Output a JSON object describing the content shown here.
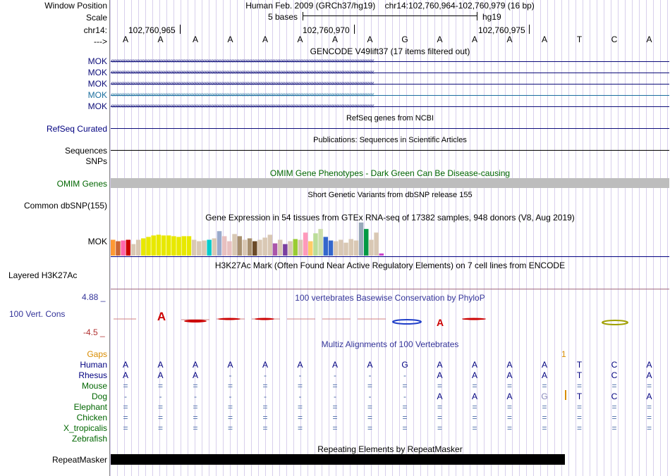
{
  "header": {
    "window_position_label": "Window Position",
    "window_position_title": "Human Feb. 2009 (GRCh37/hg19)    chr14:102,760,964-102,760,979 (16 bp)",
    "scale_label": "Scale",
    "scale_text": "5 bases",
    "scale_assembly": "hg19",
    "chrom_label": "chr14:",
    "coords": [
      "102,760,965",
      "102,760,970",
      "102,760,975"
    ],
    "strand_label": "--->"
  },
  "sequence": [
    "A",
    "A",
    "A",
    "A",
    "A",
    "A",
    "A",
    "A",
    "G",
    "A",
    "A",
    "A",
    "A",
    "T",
    "C",
    "A"
  ],
  "tracks": {
    "gencode": {
      "title": "GENCODE V49lift37 (17 items filtered out)",
      "items": [
        "MOK",
        "MOK",
        "MOK",
        "MOK",
        "MOK"
      ],
      "colors": [
        "#0c0c78",
        "#0c0c78",
        "#0c0c78",
        "#1a6e9e",
        "#0c0c78"
      ]
    },
    "refseq": {
      "title": "RefSeq genes from NCBI",
      "label": "RefSeq Curated"
    },
    "publications": {
      "title": "Publications: Sequences in Scientific Articles",
      "label1": "Sequences",
      "label2": "SNPs"
    },
    "omim": {
      "title": "OMIM Gene Phenotypes - Dark Green Can Be Disease-causing",
      "label": "OMIM Genes"
    },
    "dbsnp": {
      "title": "Short Genetic Variants from dbSNP release 155",
      "label": "Common dbSNP(155)"
    },
    "gtex": {
      "title": "Gene Expression in 54 tissues from GTEx RNA-seq of 17382 samples, 948 donors (V8, Aug 2019)",
      "label": "MOK"
    },
    "h3k27ac": {
      "title": "H3K27Ac Mark (Often Found Near Active Regulatory Elements) on 7 cell lines from ENCODE",
      "label": "Layered H3K27Ac"
    },
    "phylop": {
      "title": "100 vertebrates Basewise Conservation by PhyloP",
      "label": "100 Vert. Cons",
      "max": "4.88 _",
      "min": "-4.5 _"
    },
    "multiz": {
      "title": "Multiz Alignments of 100 Vertebrates",
      "gaps_label": "Gaps",
      "gap_count": "1",
      "species": [
        {
          "name": "Human",
          "row": [
            "A",
            "A",
            "A",
            "A",
            "A",
            "A",
            "A",
            "A",
            "G",
            "A",
            "A",
            "A",
            "A",
            "T",
            "C",
            "A"
          ]
        },
        {
          "name": "Rhesus",
          "row": [
            "A",
            "A",
            "A",
            "-",
            "-",
            "-",
            "-",
            "-",
            "-",
            "A",
            "A",
            "A",
            "A",
            "T",
            "C",
            "A"
          ]
        },
        {
          "name": "Mouse",
          "row": [
            "=",
            "=",
            "=",
            "=",
            "=",
            "=",
            "=",
            "=",
            "=",
            "=",
            "=",
            "=",
            "=",
            "=",
            "=",
            "="
          ]
        },
        {
          "name": "Dog",
          "row": [
            "-",
            "-",
            "-",
            "-",
            "-",
            "-",
            "-",
            "-",
            "-",
            "A",
            "A",
            "A",
            "G",
            "T",
            "C",
            "A"
          ]
        },
        {
          "name": "Elephant",
          "row": [
            "=",
            "=",
            "=",
            "=",
            "=",
            "=",
            "=",
            "=",
            "=",
            "=",
            "=",
            "=",
            "=",
            "=",
            "=",
            "="
          ]
        },
        {
          "name": "Chicken",
          "row": [
            "=",
            "=",
            "=",
            "=",
            "=",
            "=",
            "=",
            "=",
            "=",
            "=",
            "=",
            "=",
            "=",
            "=",
            "=",
            "="
          ]
        },
        {
          "name": "X_tropicalis",
          "row": [
            "=",
            "=",
            "=",
            "=",
            "=",
            "=",
            "=",
            "=",
            "=",
            "=",
            "=",
            "=",
            "=",
            "=",
            "=",
            "="
          ]
        },
        {
          "name": "Zebrafish",
          "row": [
            "",
            "",
            "",
            "",
            "",
            "",
            "",
            "",
            "",
            "",
            "",
            "",
            "",
            "",
            "",
            ""
          ]
        }
      ]
    },
    "repeatmasker": {
      "title": "Repeating Elements by RepeatMasker",
      "label": "RepeatMasker"
    }
  },
  "chart_data": {
    "type": "bar",
    "title": "Gene Expression in 54 tissues from GTEx RNA-seq of 17382 samples, 948 donors (V8, Aug 2019)",
    "ylabel": "",
    "ylim": [
      0,
      46
    ],
    "values": [
      22,
      20,
      21,
      22,
      16,
      22,
      24,
      26,
      28,
      29,
      28,
      28,
      27,
      26,
      27,
      27,
      22,
      20,
      21,
      22,
      24,
      34,
      27,
      20,
      30,
      27,
      22,
      24,
      20,
      22,
      25,
      29,
      17,
      22,
      16,
      20,
      23,
      22,
      32,
      20,
      31,
      37,
      26,
      21,
      20,
      22,
      18,
      23,
      21,
      46,
      37,
      22,
      32,
      3
    ],
    "colors": [
      "#ff9933",
      "#cc6633",
      "#ff66aa",
      "#cc0000",
      "#d9c8b4",
      "#d9c8b4",
      "#e8e800",
      "#e8e800",
      "#e8e800",
      "#e8e800",
      "#e8e800",
      "#e8e800",
      "#e8e800",
      "#e8e800",
      "#e8e800",
      "#e8e800",
      "#d9c8b4",
      "#d9c8b4",
      "#d9c8b4",
      "#00cccc",
      "#d9c8b4",
      "#99aacc",
      "#e8c0c0",
      "#e8c0c0",
      "#d9c8b4",
      "#a89070",
      "#d9c8b4",
      "#a89070",
      "#6b4a28",
      "#d9c8b4",
      "#d9c8b4",
      "#d9c8b4",
      "#aa55aa",
      "#d9c8b4",
      "#7a3fa0",
      "#d9c8b4",
      "#99cc33",
      "#d9c8b4",
      "#ff99bb",
      "#ffcc66",
      "#bbdd99",
      "#ccddaa",
      "#3366cc",
      "#3366cc",
      "#d9c8b4",
      "#d9c8b4",
      "#d9c8b4",
      "#d9c8b4",
      "#d9c8b4",
      "#99aabb",
      "#009944",
      "#d9c8b4",
      "#d9c8b4",
      "#cc44cc"
    ]
  }
}
